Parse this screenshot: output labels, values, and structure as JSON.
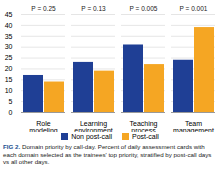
{
  "chart_data": {
    "type": "bar",
    "title": "FIG 2.",
    "subtitle": "Domain priority by call-day. Percent of daily assessment cards with each domain selected as the trainees' top priority, stratified by post-call days vs all other days.",
    "categories": [
      "Role modeling",
      "Learning environment",
      "Teaching process",
      "Team management"
    ],
    "series": [
      {
        "name": "Non post-call",
        "color": "#1f3f95",
        "values": [
          17,
          23,
          31,
          24
        ]
      },
      {
        "name": "Post-call",
        "color": "#f5a623",
        "values": [
          14,
          19,
          22,
          39
        ]
      }
    ],
    "annotations": [
      "P = 0.25",
      "P = 0.13",
      "P = 0.005",
      "P = 0.001"
    ],
    "ylim": [
      0,
      45
    ],
    "yticks": [
      0,
      5,
      10,
      15,
      20,
      25,
      30,
      35,
      40,
      45
    ],
    "grid": true,
    "legend": "bottom"
  }
}
